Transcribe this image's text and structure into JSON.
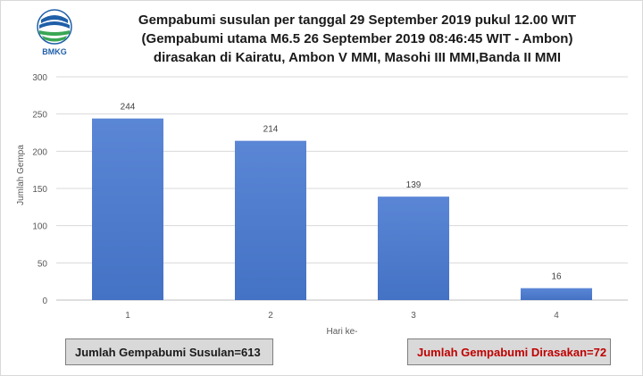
{
  "logo": {
    "text": "BMKG",
    "colors": {
      "blue": "#1f5fa8",
      "green": "#3aa655"
    }
  },
  "title": {
    "line1": "Gempabumi susulan per tanggal 29 September 2019 pukul 12.00 WIT",
    "line2": "(Gempabumi utama M6.5 26 September 2019 08:46:45 WIT - Ambon)",
    "line3": "dirasakan di Kairatu, Ambon V MMI, Masohi III MMI,Banda II MMI"
  },
  "chart_data": {
    "type": "bar",
    "categories": [
      "1",
      "2",
      "3",
      "4"
    ],
    "values": [
      244,
      214,
      139,
      16
    ],
    "data_labels": [
      "244",
      "214",
      "139",
      "16"
    ],
    "xlabel": "Hari ke-",
    "ylabel": "Jumlah Gempa",
    "ylim": [
      0,
      300
    ],
    "yticks": [
      "0",
      "50",
      "100",
      "150",
      "200",
      "250",
      "300"
    ],
    "grid": true,
    "bar_color": "#4472c4"
  },
  "summary": {
    "total_aftershocks": "Jumlah Gempabumi Susulan=613",
    "felt_count": "Jumlah Gempabumi Dirasakan=72",
    "felt_color": "#c00000"
  }
}
